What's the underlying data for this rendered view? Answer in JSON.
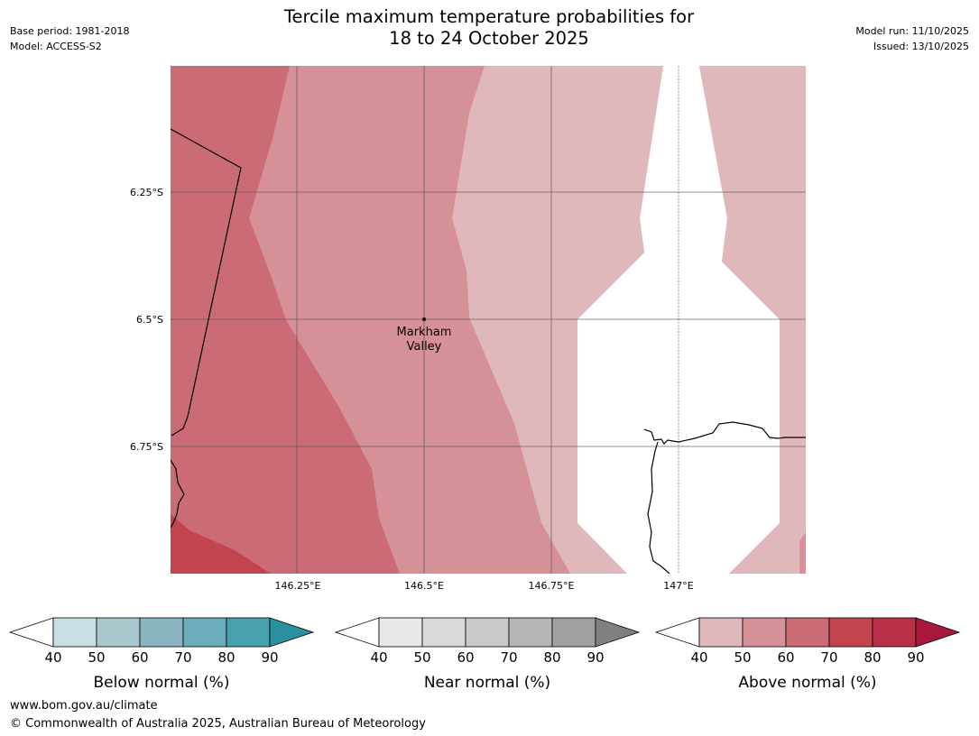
{
  "header": {
    "base_period": "Base period: 1981-2018",
    "model": "Model: ACCESS-S2",
    "model_run": "Model run: 11/10/2025",
    "issued": "Issued: 13/10/2025",
    "title_line1": "Tercile maximum temperature probabilities for",
    "title_line2": "18 to 24 October 2025"
  },
  "map": {
    "lat_labels": [
      "6.25°S",
      "6.5°S",
      "6.75°S"
    ],
    "lon_labels": [
      "146.25°E",
      "146.5°E",
      "146.75°E",
      "147°E"
    ],
    "place": {
      "name_line1": "Markham",
      "name_line2": "Valley"
    },
    "colors": {
      "above_50": "#e0b8bc",
      "above_60": "#d69097",
      "above_70": "#cb6b75",
      "above_80": "#c2444f",
      "no_data": "#ffffff"
    }
  },
  "legends": [
    {
      "title": "Below normal (%)",
      "ticks": [
        "40",
        "50",
        "60",
        "70",
        "80",
        "90"
      ],
      "colors": [
        "#c8e0e5",
        "#a8c7cc",
        "#89b5c0",
        "#6aacb9",
        "#47a1ae",
        "#2b8fa0"
      ]
    },
    {
      "title": "Near normal (%)",
      "ticks": [
        "40",
        "50",
        "60",
        "70",
        "80",
        "90"
      ],
      "colors": [
        "#e7e7e7",
        "#d9d9d9",
        "#c9c9c9",
        "#b5b5b5",
        "#a0a0a0",
        "#808080"
      ]
    },
    {
      "title": "Above normal (%)",
      "ticks": [
        "40",
        "50",
        "60",
        "70",
        "80",
        "90"
      ],
      "colors": [
        "#e0b8bc",
        "#d69097",
        "#cb6b75",
        "#c2444f",
        "#b93048",
        "#a8183a"
      ]
    }
  ],
  "footer": {
    "url": "www.bom.gov.au/climate",
    "copyright": "© Commonwealth of Australia 2025, Australian Bureau of Meteorology"
  }
}
